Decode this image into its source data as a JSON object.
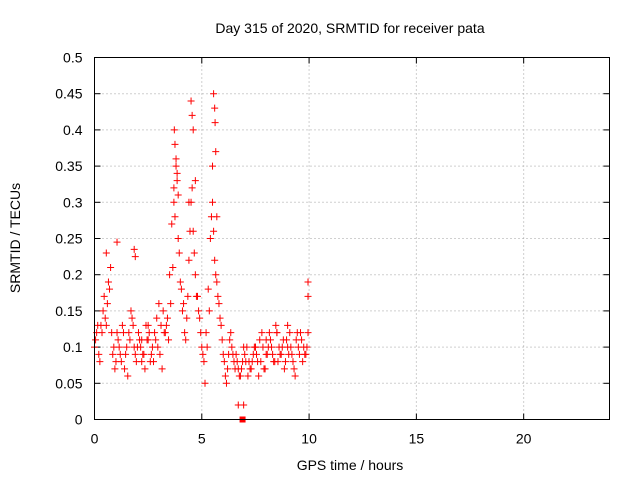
{
  "chart_data": {
    "type": "scatter",
    "title": "Day 315 of 2020, SRMTID for receiver pata",
    "xlabel": "GPS time / hours",
    "ylabel": "SRMTID / TECUs",
    "xlim": [
      0,
      24
    ],
    "ylim": [
      0,
      0.5
    ],
    "x_ticks": [
      0,
      5,
      10,
      15,
      20
    ],
    "x_tick_labels": [
      "0",
      "5",
      "10",
      "15",
      "20"
    ],
    "y_ticks": [
      0,
      0.05,
      0.1,
      0.15,
      0.2,
      0.25,
      0.3,
      0.35,
      0.4,
      0.45,
      0.5
    ],
    "y_tick_labels": [
      "0",
      "0.05",
      "0.1",
      "0.15",
      "0.2",
      "0.25",
      "0.3",
      "0.35",
      "0.4",
      "0.45",
      "0.5"
    ],
    "grid": true,
    "marker": "+",
    "color": "#ff0000",
    "series": [
      {
        "name": "SRMTID",
        "x": [
          0.0,
          0.1,
          0.2,
          0.3,
          0.4,
          0.5,
          0.6,
          0.7,
          0.8,
          0.9,
          1.0,
          1.1,
          1.2,
          1.3,
          1.4,
          1.5,
          1.6,
          1.7,
          1.8,
          1.9,
          2.0,
          2.1,
          2.2,
          2.3,
          2.4,
          2.5,
          2.6,
          2.7,
          2.8,
          2.9,
          3.0,
          3.1,
          3.2,
          3.3,
          3.4,
          3.5,
          3.6,
          3.7,
          3.8,
          3.9,
          4.0,
          4.1,
          4.2,
          4.3,
          4.4,
          4.5,
          4.6,
          4.7,
          4.8,
          4.9,
          5.0,
          5.1,
          5.2,
          5.3,
          5.4,
          5.5,
          5.6,
          5.7,
          5.8,
          5.9,
          6.0,
          6.1,
          6.2,
          6.3,
          6.4,
          6.5,
          6.6,
          6.7,
          6.8,
          6.9,
          7.0,
          7.1,
          7.2,
          7.3,
          7.4,
          7.5,
          7.6,
          7.7,
          7.8,
          7.9,
          8.0,
          8.1,
          8.2,
          8.3,
          8.4,
          8.5,
          8.6,
          8.7,
          8.8,
          8.9,
          9.0,
          9.1,
          9.2,
          9.3,
          9.4,
          9.5,
          9.6,
          9.7,
          9.8,
          9.9,
          0.05,
          0.15,
          0.25,
          0.35,
          0.45,
          0.55,
          0.65,
          0.75,
          0.85,
          0.95,
          1.05,
          1.15,
          1.25,
          1.35,
          1.45,
          1.55,
          1.65,
          1.75,
          1.85,
          1.95,
          2.05,
          2.15,
          2.25,
          2.35,
          2.45,
          2.55,
          2.65,
          2.75,
          2.85,
          2.95,
          3.05,
          3.15,
          3.25,
          3.35,
          3.45,
          3.55,
          3.65,
          3.75,
          3.85,
          3.95,
          4.05,
          4.15,
          4.25,
          4.35,
          4.45,
          4.55,
          4.65,
          4.75,
          4.85,
          4.95,
          5.05,
          5.15,
          5.25,
          5.35,
          5.45,
          5.55,
          5.65,
          5.75,
          5.85,
          5.95,
          6.05,
          6.15,
          6.25,
          6.35,
          6.45,
          6.55,
          6.65,
          6.75,
          6.85,
          6.95,
          7.05,
          7.15,
          7.25,
          7.35,
          7.45,
          7.55,
          7.65,
          7.75,
          7.85,
          7.95,
          8.05,
          8.15,
          8.25,
          8.35,
          8.45,
          8.55,
          8.65,
          8.75,
          8.85,
          8.95,
          9.05,
          9.15,
          9.25,
          9.35,
          9.45,
          9.55,
          9.65,
          9.75,
          9.85,
          9.95,
          3.72,
          3.75,
          3.8,
          3.85,
          4.5,
          4.55,
          4.6,
          5.55,
          5.6,
          5.62,
          5.65,
          3.7,
          3.9,
          4.4,
          4.7,
          5.5,
          5.7,
          1.05,
          1.85,
          1.9,
          0.55,
          9.95,
          9.95,
          6.95,
          6.7,
          2.2,
          2.5,
          7.5,
          8.0,
          8.5,
          9.0
        ],
        "y": [
          0.1,
          0.12,
          0.09,
          0.13,
          0.15,
          0.14,
          0.16,
          0.18,
          0.12,
          0.1,
          0.08,
          0.11,
          0.09,
          0.13,
          0.07,
          0.1,
          0.12,
          0.15,
          0.13,
          0.09,
          0.1,
          0.11,
          0.08,
          0.09,
          0.13,
          0.11,
          0.08,
          0.1,
          0.12,
          0.14,
          0.16,
          0.13,
          0.15,
          0.12,
          0.14,
          0.2,
          0.27,
          0.3,
          0.35,
          0.25,
          0.19,
          0.15,
          0.12,
          0.14,
          0.22,
          0.3,
          0.26,
          0.2,
          0.17,
          0.14,
          0.1,
          0.08,
          0.12,
          0.18,
          0.25,
          0.3,
          0.22,
          0.19,
          0.16,
          0.13,
          0.09,
          0.06,
          0.07,
          0.11,
          0.1,
          0.08,
          0.09,
          0.07,
          0.06,
          0.08,
          0.09,
          0.1,
          0.08,
          0.07,
          0.09,
          0.1,
          0.08,
          0.11,
          0.12,
          0.07,
          0.09,
          0.1,
          0.11,
          0.09,
          0.08,
          0.12,
          0.1,
          0.09,
          0.11,
          0.08,
          0.1,
          0.12,
          0.09,
          0.07,
          0.11,
          0.1,
          0.12,
          0.08,
          0.09,
          0.1,
          0.11,
          0.13,
          0.08,
          0.12,
          0.17,
          0.13,
          0.19,
          0.21,
          0.09,
          0.07,
          0.12,
          0.1,
          0.08,
          0.12,
          0.09,
          0.06,
          0.11,
          0.14,
          0.1,
          0.08,
          0.12,
          0.1,
          0.09,
          0.07,
          0.11,
          0.12,
          0.09,
          0.08,
          0.11,
          0.1,
          0.09,
          0.07,
          0.12,
          0.13,
          0.11,
          0.16,
          0.21,
          0.28,
          0.33,
          0.23,
          0.18,
          0.16,
          0.11,
          0.17,
          0.26,
          0.32,
          0.23,
          0.17,
          0.15,
          0.12,
          0.09,
          0.05,
          0.1,
          0.15,
          0.28,
          0.26,
          0.2,
          0.17,
          0.14,
          0.11,
          0.08,
          0.05,
          0.09,
          0.12,
          0.09,
          0.07,
          0.08,
          0.06,
          0.07,
          0.1,
          0.08,
          0.06,
          0.07,
          0.08,
          0.1,
          0.09,
          0.06,
          0.08,
          0.1,
          0.07,
          0.09,
          0.12,
          0.1,
          0.08,
          0.13,
          0.08,
          0.09,
          0.1,
          0.07,
          0.11,
          0.09,
          0.1,
          0.08,
          0.06,
          0.12,
          0.09,
          0.11,
          0.1,
          0.09,
          0.12,
          0.4,
          0.38,
          0.36,
          0.34,
          0.44,
          0.42,
          0.4,
          0.45,
          0.43,
          0.41,
          0.37,
          0.32,
          0.31,
          0.3,
          0.33,
          0.35,
          0.28,
          0.245,
          0.235,
          0.225,
          0.23,
          0.19,
          0.17,
          0.02,
          0.02,
          0.11,
          0.13,
          0.1,
          0.11,
          0.12,
          0.13
        ]
      },
      {
        "name": "filled-square",
        "x": [
          6.9
        ],
        "y": [
          0.0
        ]
      }
    ]
  }
}
